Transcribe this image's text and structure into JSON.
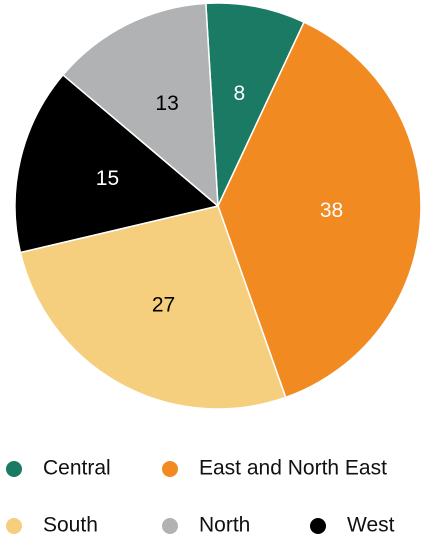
{
  "chart_data": {
    "type": "pie",
    "categories": [
      "Central",
      "East and North East",
      "South",
      "West",
      "North"
    ],
    "values": [
      8,
      38,
      27,
      15,
      13
    ],
    "colors": [
      "#1a7a63",
      "#f28a22",
      "#f5cf7e",
      "#000000",
      "#b1b2b4"
    ]
  }
}
